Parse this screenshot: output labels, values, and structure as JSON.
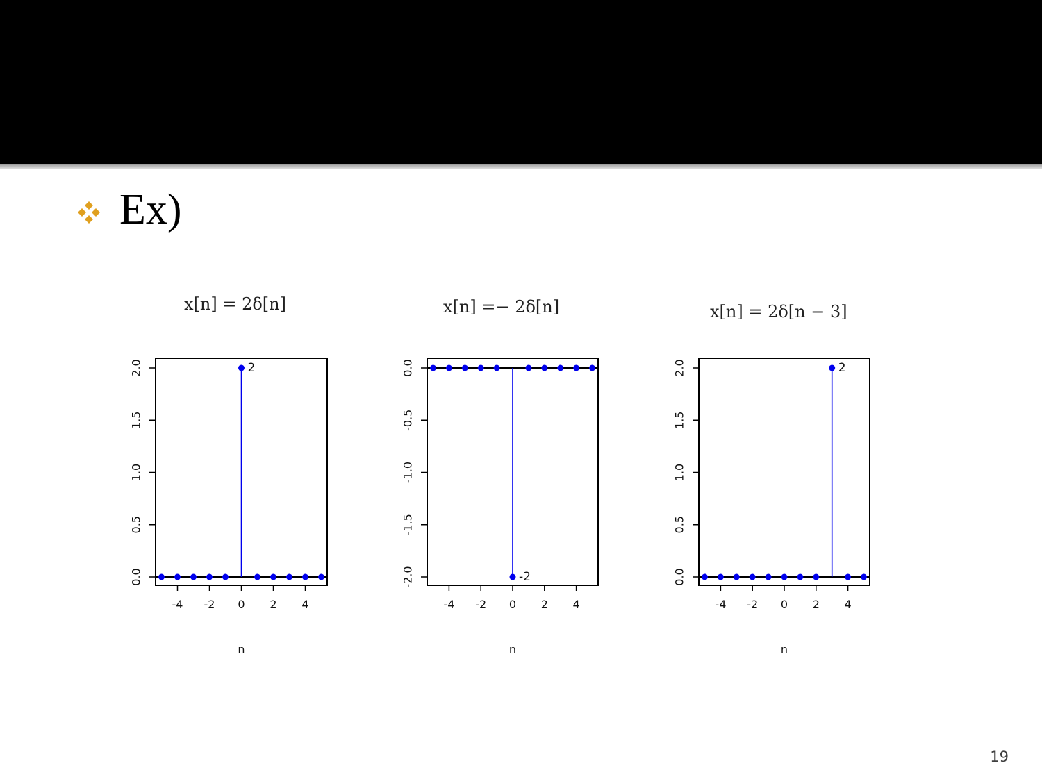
{
  "slide": {
    "bullet_icon": "four-diamond-bullet-icon",
    "bullet_color": "#E0A020",
    "bullet_text": "Ex)",
    "page_number": "19"
  },
  "colors": {
    "stem": "#0000EE",
    "axis": "#000000"
  },
  "chart_data": [
    {
      "type": "stem",
      "title": "x[n] = 2δ[n]",
      "xlabel": "n",
      "ylabel": "",
      "x": [
        -5,
        -4,
        -3,
        -2,
        -1,
        0,
        1,
        2,
        3,
        4,
        5
      ],
      "values": [
        0,
        0,
        0,
        0,
        0,
        2,
        0,
        0,
        0,
        0,
        0
      ],
      "xlim": [
        -5,
        5
      ],
      "ylim": [
        0,
        2
      ],
      "xticks": [
        "-4",
        "-2",
        "0",
        "2",
        "4"
      ],
      "yticks": [
        "0.0",
        "0.5",
        "1.0",
        "1.5",
        "2.0"
      ],
      "annotations": [
        {
          "x": 0,
          "y": 2,
          "text": "2"
        }
      ]
    },
    {
      "type": "stem",
      "title": "x[n] =− 2δ[n]",
      "xlabel": "n",
      "ylabel": "",
      "x": [
        -5,
        -4,
        -3,
        -2,
        -1,
        0,
        1,
        2,
        3,
        4,
        5
      ],
      "values": [
        0,
        0,
        0,
        0,
        0,
        -2,
        0,
        0,
        0,
        0,
        0
      ],
      "xlim": [
        -5,
        5
      ],
      "ylim": [
        -2,
        0
      ],
      "xticks": [
        "-4",
        "-2",
        "0",
        "2",
        "4"
      ],
      "yticks": [
        "-2.0",
        "-1.5",
        "-1.0",
        "-0.5",
        "0.0"
      ],
      "annotations": [
        {
          "x": 0,
          "y": -2,
          "text": "-2"
        }
      ]
    },
    {
      "type": "stem",
      "title": "x[n] = 2δ[n − 3]",
      "xlabel": "n",
      "ylabel": "",
      "x": [
        -5,
        -4,
        -3,
        -2,
        -1,
        0,
        1,
        2,
        3,
        4,
        5
      ],
      "values": [
        0,
        0,
        0,
        0,
        0,
        0,
        0,
        0,
        2,
        0,
        0
      ],
      "xlim": [
        -5,
        5
      ],
      "ylim": [
        0,
        2
      ],
      "xticks": [
        "-4",
        "-2",
        "0",
        "2",
        "4"
      ],
      "yticks": [
        "0.0",
        "0.5",
        "1.0",
        "1.5",
        "2.0"
      ],
      "annotations": [
        {
          "x": 3,
          "y": 2,
          "text": "2"
        }
      ]
    }
  ]
}
